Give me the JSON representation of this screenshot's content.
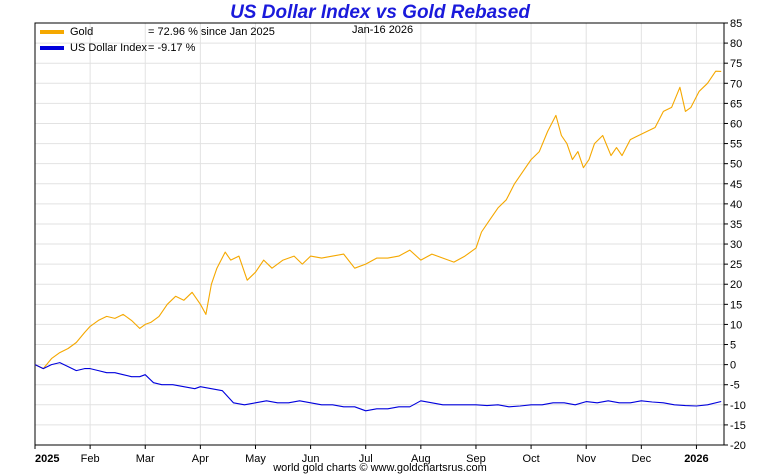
{
  "chart_data": {
    "type": "line",
    "title": "US Dollar Index vs Gold Rebased",
    "date_label": "Jan-16  2026",
    "credit": "world gold charts © www.goldchartsrus.com",
    "xlabel": "",
    "ylabel": "",
    "ylim": [
      -20,
      85
    ],
    "yticks": [
      85,
      80,
      75,
      70,
      65,
      60,
      55,
      50,
      45,
      40,
      35,
      30,
      25,
      20,
      15,
      10,
      5,
      0,
      -5,
      -10,
      -15,
      -20
    ],
    "xlim": [
      0,
      12.5
    ],
    "xticks": [
      {
        "label": "2025",
        "x": 0,
        "bold": true
      },
      {
        "label": "Feb",
        "x": 1,
        "bold": false
      },
      {
        "label": "Mar",
        "x": 2,
        "bold": false
      },
      {
        "label": "Apr",
        "x": 3,
        "bold": false
      },
      {
        "label": "May",
        "x": 4,
        "bold": false
      },
      {
        "label": "Jun",
        "x": 5,
        "bold": false
      },
      {
        "label": "Jul",
        "x": 6,
        "bold": false
      },
      {
        "label": "Aug",
        "x": 7,
        "bold": false
      },
      {
        "label": "Sep",
        "x": 8,
        "bold": false
      },
      {
        "label": "Oct",
        "x": 9,
        "bold": false
      },
      {
        "label": "Nov",
        "x": 10,
        "bold": false
      },
      {
        "label": "Dec",
        "x": 11,
        "bold": false
      },
      {
        "label": "2026",
        "x": 12,
        "bold": true
      }
    ],
    "grid": true,
    "legend_position": "top-left",
    "series": [
      {
        "name": "Gold",
        "legend_name": "Gold",
        "legend_text": "= 72.96 % since Jan 2025",
        "color": "#f5a800",
        "x": [
          0,
          0.15,
          0.3,
          0.45,
          0.6,
          0.75,
          0.9,
          1.0,
          1.15,
          1.3,
          1.45,
          1.6,
          1.75,
          1.9,
          2.0,
          2.1,
          2.25,
          2.4,
          2.55,
          2.7,
          2.85,
          3.0,
          3.1,
          3.2,
          3.3,
          3.45,
          3.55,
          3.7,
          3.85,
          4.0,
          4.15,
          4.3,
          4.5,
          4.7,
          4.85,
          5.0,
          5.2,
          5.4,
          5.6,
          5.8,
          6.0,
          6.2,
          6.4,
          6.6,
          6.8,
          7.0,
          7.2,
          7.4,
          7.6,
          7.8,
          8.0,
          8.1,
          8.25,
          8.4,
          8.55,
          8.7,
          8.85,
          9.0,
          9.15,
          9.3,
          9.45,
          9.55,
          9.65,
          9.75,
          9.85,
          9.95,
          10.05,
          10.15,
          10.3,
          10.45,
          10.55,
          10.65,
          10.8,
          10.95,
          11.1,
          11.25,
          11.4,
          11.55,
          11.7,
          11.8,
          11.9,
          12.05,
          12.2,
          12.35,
          12.45
        ],
        "values": [
          0,
          -1,
          1.5,
          3,
          4,
          5.5,
          8,
          9.5,
          11,
          12,
          11.5,
          12.5,
          11,
          9,
          10,
          10.5,
          12,
          15,
          17,
          16,
          18,
          15,
          12.5,
          20,
          24,
          28,
          26,
          27,
          21,
          23,
          26,
          24,
          26,
          27,
          25,
          27,
          26.5,
          27,
          27.5,
          24,
          25,
          26.5,
          26.5,
          27,
          28.5,
          26,
          27.5,
          26.5,
          25.5,
          27,
          29,
          33,
          36,
          39,
          41,
          45,
          48,
          51,
          53,
          58,
          62,
          57,
          55,
          51,
          53,
          49,
          51,
          55,
          57,
          52,
          54,
          52,
          56,
          57,
          58,
          59,
          63,
          64,
          69,
          63,
          64,
          68,
          70,
          73,
          72.96
        ]
      },
      {
        "name": "US Dollar Index",
        "legend_name": "US Dollar Index",
        "legend_text": "= -9.17 %",
        "color": "#0000dd",
        "x": [
          0,
          0.15,
          0.3,
          0.45,
          0.6,
          0.75,
          0.9,
          1.0,
          1.15,
          1.3,
          1.45,
          1.6,
          1.75,
          1.9,
          2.0,
          2.15,
          2.3,
          2.5,
          2.7,
          2.9,
          3.0,
          3.2,
          3.4,
          3.6,
          3.8,
          4.0,
          4.2,
          4.4,
          4.6,
          4.8,
          5.0,
          5.2,
          5.4,
          5.6,
          5.8,
          6.0,
          6.2,
          6.4,
          6.6,
          6.8,
          7.0,
          7.2,
          7.4,
          7.6,
          7.8,
          8.0,
          8.2,
          8.4,
          8.6,
          8.8,
          9.0,
          9.2,
          9.4,
          9.6,
          9.8,
          10.0,
          10.2,
          10.4,
          10.6,
          10.8,
          11.0,
          11.2,
          11.4,
          11.6,
          11.8,
          12.0,
          12.2,
          12.45
        ],
        "values": [
          0,
          -1,
          0,
          0.5,
          -0.5,
          -1.5,
          -1,
          -1,
          -1.5,
          -2,
          -2,
          -2.5,
          -3,
          -3,
          -2.5,
          -4.5,
          -5,
          -5,
          -5.5,
          -6,
          -5.5,
          -6,
          -6.5,
          -9.5,
          -10,
          -9.5,
          -9,
          -9.5,
          -9.5,
          -9,
          -9.5,
          -10,
          -10,
          -10.5,
          -10.5,
          -11.5,
          -11,
          -11,
          -10.5,
          -10.5,
          -9,
          -9.5,
          -10,
          -10,
          -10,
          -10,
          -10.2,
          -10,
          -10.5,
          -10.3,
          -10,
          -10,
          -9.5,
          -9.5,
          -10,
          -9.2,
          -9.5,
          -9,
          -9.5,
          -9.5,
          -9,
          -9.3,
          -9.5,
          -10,
          -10.2,
          -10.3,
          -10,
          -9.17
        ]
      }
    ]
  }
}
